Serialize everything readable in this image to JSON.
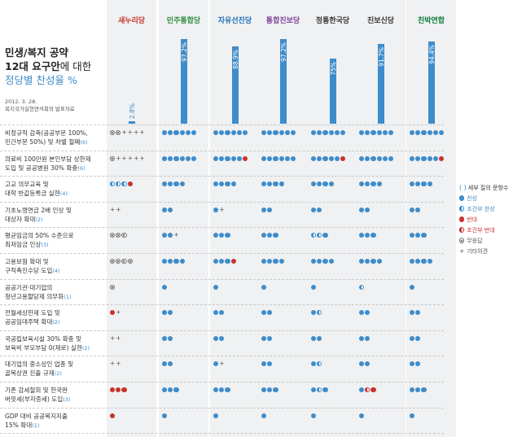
{
  "title": {
    "line1": "민생/복지 공약",
    "line2_bold": "12대 요구안",
    "line2_rest": "에 대한",
    "line3": "정당별 찬성율 %",
    "date": "2012. 3. 28.",
    "source": "복지국가실현연석회의 발표자료"
  },
  "colors": {
    "yes": "#3d8ccb",
    "no": "#c8332d",
    "column_bg": "#f0f1f2",
    "saenuri": "#c8332d",
    "democratic": "#2e8b3d",
    "liberty": "#1f6fb5",
    "unified": "#7b3f98",
    "correct": "#333333",
    "jinbo": "#333333",
    "promise": "#0a7a3d"
  },
  "parties": [
    {
      "id": "saenuri",
      "name": "새누리당"
    },
    {
      "id": "democratic",
      "name": "민주통합당"
    },
    {
      "id": "liberty",
      "name": "자유선진당"
    },
    {
      "id": "unified",
      "name": "통합진보당"
    },
    {
      "id": "correct",
      "name": "정통한국당"
    },
    {
      "id": "jinbo",
      "name": "진보신당"
    },
    {
      "id": "promise",
      "name": "친박연합"
    }
  ],
  "chart_data": {
    "type": "bar",
    "title": "정당별 찬성율 %",
    "categories": [
      "새누리당",
      "민주통합당",
      "자유선진당",
      "통합진보당",
      "정통한국당",
      "진보신당",
      "친박연합"
    ],
    "values": [
      2.8,
      97.2,
      88.9,
      97.2,
      75,
      91.7,
      94.4
    ],
    "value_labels": [
      "2.8%",
      "97.2%",
      "88.9%",
      "97.2%",
      "75%",
      "91.7%",
      "94.4%"
    ],
    "ylim": [
      0,
      100
    ]
  },
  "legend": {
    "title": "세부 질의 문항수",
    "items": [
      {
        "symbol": "y",
        "label": "찬성"
      },
      {
        "symbol": "cy",
        "label": "조건부 찬성"
      },
      {
        "symbol": "n",
        "label": "반대"
      },
      {
        "symbol": "cn",
        "label": "조건부 반대"
      },
      {
        "symbol": "u",
        "label": "무응답"
      },
      {
        "symbol": "o",
        "label": "기타의견"
      }
    ]
  },
  "rows": [
    {
      "line1": "비정규직 감축(공공부문 100%,",
      "line2": "민간부문 50%) 및 차별 철폐",
      "count": "(6)",
      "cells": [
        "uuoooo",
        "yyyyyy",
        "yyyyyy",
        "yyyyyy",
        "yyyyyy",
        "yyyyyy",
        "yyyyyy"
      ]
    },
    {
      "line1": "의료비 100만원 본인부담 상한제",
      "line2": "도입 및 공공병원 30% 확충",
      "count": "(6)",
      "cells": [
        "uooooo",
        "yyyyyy",
        "yyyyyn",
        "yyyyyy",
        "yyyyyn",
        "yyyyyy",
        "yyyyyn"
      ]
    },
    {
      "line1": "고교 의무교육 및",
      "line2": "대학 반값등록금 실현",
      "count": "(4)",
      "cells": [
        "cycycyn",
        "yyyy",
        "yyyy",
        "yyyy",
        "yyyy",
        "yyyy",
        "yyyy"
      ]
    },
    {
      "line1": "기초노령연금 2배 인상 및",
      "line2": "대상자 확대",
      "count": "(2)",
      "cells": [
        "oo",
        "yy",
        "yo",
        "yy",
        "yy",
        "yy",
        "yy"
      ]
    },
    {
      "line1": "평균임금의 50% 수준으로",
      "line2": "최저임금 인상",
      "count": "(3)",
      "cells": [
        "uuu",
        "yyo",
        "yyy",
        "yyy",
        "cycyy",
        "yyy",
        "yyy"
      ]
    },
    {
      "line1": "고용보험 확대 및",
      "line2": "구직촉진수당 도입",
      "count": "(4)",
      "cells": [
        "uuuu",
        "yyyy",
        "yyyn",
        "yyyy",
        "yyyy",
        "yyyy",
        "yyyy"
      ]
    },
    {
      "line1": "공공기관·대기업의",
      "line2": "청년고용할당제 의무화",
      "count": "(1)",
      "cells": [
        "u",
        "y",
        "y",
        "y",
        "y",
        "cy",
        "y"
      ]
    },
    {
      "line1": "전월세상한제 도입 및",
      "line2": "공공임대주택 확대",
      "count": "(2)",
      "cells": [
        "no",
        "yy",
        "yy",
        "yy",
        "ycy",
        "yy",
        "yy"
      ]
    },
    {
      "line1": "국공립보육시설 30% 확충 및",
      "line2": "보육비 부모부담 0(제로) 실현",
      "count": "(2)",
      "cells": [
        "oo",
        "yy",
        "yy",
        "yy",
        "yy",
        "yy",
        "yy"
      ]
    },
    {
      "line1": "대기업의 중소상인 업종 및",
      "line2": "골목상권 진출 규제",
      "count": "(2)",
      "cells": [
        "oo",
        "yy",
        "yo",
        "yy",
        "ycy",
        "yy",
        "yy"
      ]
    },
    {
      "line1": "기존 감세철회 및 한국판",
      "line2": "버핏세(부자증세) 도입",
      "count": "(3)",
      "cells": [
        "nnn",
        "yyy",
        "yyy",
        "yyy",
        "ycyy",
        "ycnn",
        "yyy"
      ]
    },
    {
      "line1": "GDP 대비 공공복지지출",
      "line2": "15% 확대",
      "count": "(1)",
      "cells": [
        "n",
        "y",
        "y",
        "y",
        "y",
        "y",
        "y"
      ]
    }
  ]
}
